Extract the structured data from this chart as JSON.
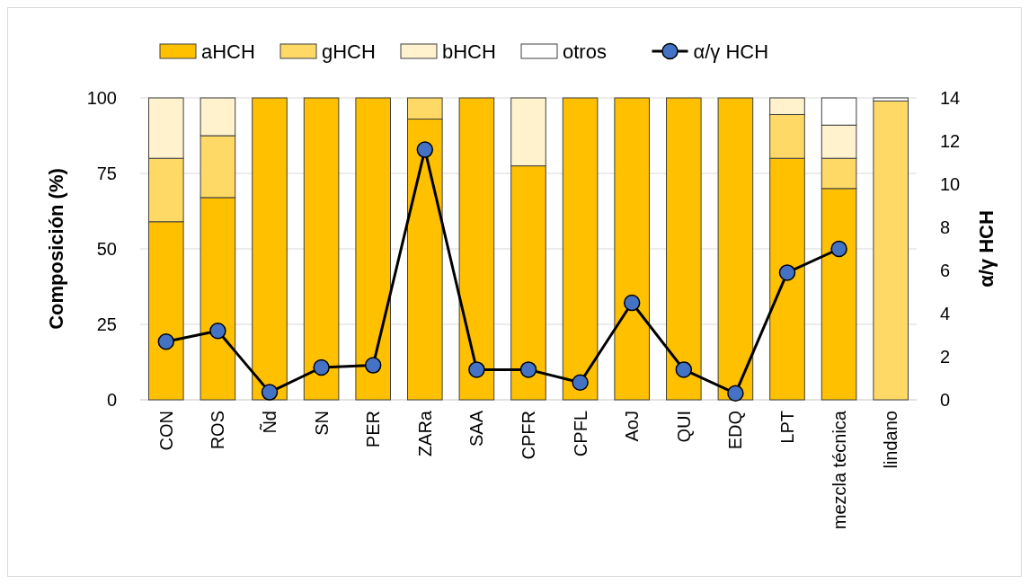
{
  "chart_data": {
    "type": "bar",
    "stacked": true,
    "ylabel": "Composición (%)",
    "y2label": "α/γ HCH",
    "categories": [
      "CON",
      "ROS",
      "Ñd",
      "SN",
      "PER",
      "ZARa",
      "SAA",
      "CPFR",
      "CPFL",
      "AoJ",
      "QUI",
      "EDQ",
      "LPT",
      "mezcla técnica",
      "lindano"
    ],
    "series": [
      {
        "name": "aHCH",
        "color": "#ffc000",
        "values": [
          59,
          67,
          100,
          100,
          100,
          93,
          100,
          77.5,
          100,
          100,
          100,
          100,
          80,
          70,
          0
        ]
      },
      {
        "name": "gHCH",
        "color": "#ffd966",
        "values": [
          21,
          20.5,
          0,
          0,
          0,
          7,
          0,
          0,
          0,
          0,
          0,
          0,
          14.5,
          10,
          99
        ]
      },
      {
        "name": "bHCH",
        "color": "#fff2cc",
        "values": [
          20,
          12.5,
          0,
          0,
          0,
          0,
          0,
          22.5,
          0,
          0,
          0,
          0,
          5.5,
          11,
          0
        ]
      },
      {
        "name": "otros",
        "color": "#ffffff",
        "values": [
          0,
          0,
          0,
          0,
          0,
          0,
          0,
          0,
          0,
          0,
          0,
          0,
          0,
          9,
          1
        ]
      },
      {
        "name": "α/γ HCH",
        "type": "line",
        "axis": "y2",
        "color": "#4472c4",
        "marker": "circle",
        "values": [
          2.7,
          3.2,
          0.35,
          1.5,
          1.6,
          11.6,
          1.4,
          1.4,
          0.8,
          4.5,
          1.4,
          0.3,
          5.9,
          7,
          null
        ]
      }
    ],
    "ylim": [
      0,
      100
    ],
    "yticks": [
      0,
      25,
      50,
      75,
      100
    ],
    "y2lim": [
      0,
      14
    ],
    "y2ticks": [
      0,
      2,
      4,
      6,
      8,
      10,
      12,
      14
    ],
    "grid": "y",
    "legend": "top"
  }
}
